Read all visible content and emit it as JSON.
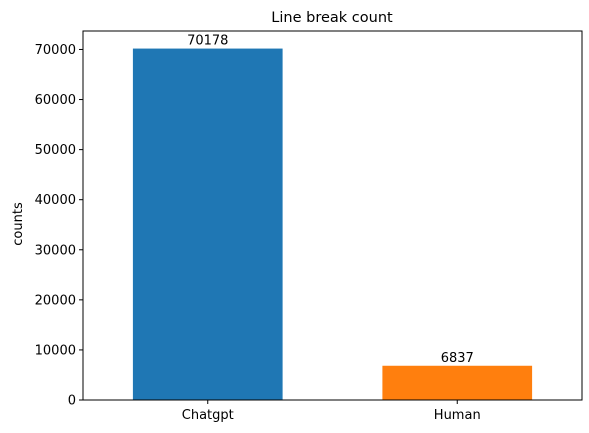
{
  "chart_data": {
    "type": "bar",
    "title": "Line break count",
    "xlabel": "",
    "ylabel": "counts",
    "categories": [
      "Chatgpt",
      "Human"
    ],
    "values": [
      70178,
      6837
    ],
    "bar_labels": [
      "70178",
      "6837"
    ],
    "colors": [
      "#1f77b4",
      "#ff7f0e"
    ],
    "ylim": [
      0,
      73687
    ],
    "yticks": [
      0,
      10000,
      20000,
      30000,
      40000,
      50000,
      60000,
      70000
    ],
    "ytick_labels": [
      "0",
      "10000",
      "20000",
      "30000",
      "40000",
      "50000",
      "60000",
      "70000"
    ],
    "grid": false,
    "legend": "none"
  }
}
